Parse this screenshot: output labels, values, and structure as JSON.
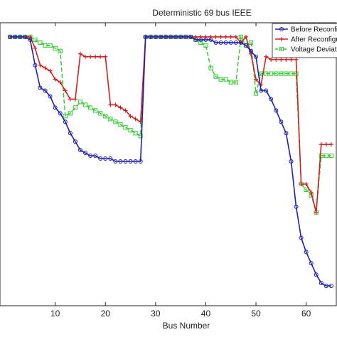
{
  "chart_data": {
    "type": "line",
    "title": "Deterministic 69 bus IEEE",
    "xlabel": "Bus Number",
    "ylabel": "",
    "xlim": [
      -1,
      66
    ],
    "ylim": [
      0.905,
      1.005
    ],
    "xticks": [
      10,
      20,
      30,
      40,
      50,
      60
    ],
    "grid": false,
    "legend_position": "top-right",
    "series": [
      {
        "name": "Before Reconfiguration",
        "color": "#1f1fb4",
        "marker": "circle",
        "dash": "solid",
        "x": [
          1,
          2,
          3,
          4,
          5,
          6,
          7,
          8,
          9,
          10,
          11,
          12,
          13,
          14,
          15,
          16,
          17,
          18,
          19,
          20,
          21,
          22,
          23,
          24,
          25,
          26,
          27,
          28,
          29,
          30,
          31,
          32,
          33,
          34,
          35,
          36,
          37,
          38,
          39,
          40,
          41,
          42,
          43,
          44,
          45,
          46,
          47,
          48,
          49,
          50,
          51,
          52,
          53,
          54,
          55,
          56,
          57,
          58,
          59,
          60,
          61,
          62,
          63,
          64,
          65
        ],
        "values": [
          1.0,
          1.0,
          1.0,
          1.0,
          0.999,
          0.99,
          0.982,
          0.981,
          0.979,
          0.975,
          0.973,
          0.97,
          0.966,
          0.963,
          0.96,
          0.959,
          0.958,
          0.958,
          0.957,
          0.957,
          0.957,
          0.956,
          0.956,
          0.956,
          0.956,
          0.956,
          0.956,
          1.0,
          1.0,
          1.0,
          1.0,
          1.0,
          1.0,
          1.0,
          1.0,
          1.0,
          1.0,
          0.999,
          0.999,
          0.999,
          0.999,
          0.998,
          0.998,
          0.998,
          0.998,
          0.998,
          0.998,
          0.997,
          0.995,
          0.993,
          0.981,
          0.981,
          0.978,
          0.974,
          0.97,
          0.966,
          0.956,
          0.94,
          0.929,
          0.924,
          0.92,
          0.916,
          0.913,
          0.912,
          0.912
        ]
      },
      {
        "name": "After Reconfiguration",
        "color": "#d42020",
        "marker": "plus",
        "dash": "solid",
        "x": [
          1,
          2,
          3,
          4,
          5,
          6,
          7,
          8,
          9,
          10,
          11,
          12,
          13,
          14,
          15,
          16,
          17,
          18,
          19,
          20,
          21,
          22,
          23,
          24,
          25,
          26,
          27,
          28,
          29,
          30,
          31,
          32,
          33,
          34,
          35,
          36,
          37,
          38,
          39,
          40,
          41,
          42,
          43,
          44,
          45,
          46,
          47,
          48,
          49,
          50,
          51,
          52,
          53,
          54,
          55,
          56,
          57,
          58,
          59,
          60,
          61,
          62,
          63,
          64,
          65
        ],
        "values": [
          1.0,
          1.0,
          1.0,
          1.0,
          1.0,
          0.996,
          0.99,
          0.989,
          0.988,
          0.985,
          0.984,
          0.981,
          0.978,
          0.978,
          0.994,
          0.993,
          0.993,
          0.993,
          0.993,
          0.993,
          0.976,
          0.976,
          0.975,
          0.974,
          0.972,
          0.971,
          0.97,
          1.0,
          1.0,
          1.0,
          1.0,
          1.0,
          1.0,
          1.0,
          1.0,
          1.0,
          1.0,
          1.0,
          1.0,
          1.0,
          1.0,
          1.0,
          1.0,
          1.0,
          1.0,
          1.0,
          0.998,
          1.0,
          0.994,
          0.985,
          0.983,
          0.993,
          0.992,
          0.992,
          0.992,
          0.992,
          0.992,
          0.992,
          0.948,
          0.948,
          0.945,
          0.938,
          0.962,
          0.962,
          0.962
        ]
      },
      {
        "name": "Voltage Deviation",
        "color": "#2fcc2f",
        "marker": "square",
        "dash": "dashed",
        "x": [
          1,
          2,
          3,
          4,
          5,
          6,
          7,
          8,
          9,
          10,
          11,
          12,
          13,
          14,
          15,
          16,
          17,
          18,
          19,
          20,
          21,
          22,
          23,
          24,
          25,
          26,
          27,
          28,
          29,
          30,
          31,
          32,
          33,
          34,
          35,
          36,
          37,
          38,
          39,
          40,
          41,
          42,
          43,
          44,
          45,
          46,
          47,
          48,
          49,
          50,
          51,
          52,
          53,
          54,
          55,
          56,
          57,
          58,
          59,
          60,
          61,
          62,
          63,
          64,
          65
        ],
        "values": [
          1.0,
          1.0,
          1.0,
          1.0,
          1.0,
          0.999,
          0.998,
          0.997,
          0.997,
          0.996,
          0.995,
          0.972,
          0.973,
          0.975,
          0.977,
          0.976,
          0.975,
          0.974,
          0.973,
          0.972,
          0.971,
          0.97,
          0.969,
          0.968,
          0.967,
          0.966,
          0.965,
          1.0,
          1.0,
          1.0,
          1.0,
          1.0,
          1.0,
          1.0,
          1.0,
          1.0,
          1.0,
          0.999,
          0.998,
          0.997,
          0.989,
          0.986,
          0.985,
          0.985,
          0.984,
          0.984,
          1.0,
          0.997,
          0.998,
          0.98,
          0.987,
          0.987,
          0.987,
          0.987,
          0.987,
          0.987,
          0.987,
          0.987,
          0.948,
          0.946,
          0.944,
          0.938,
          0.958,
          0.958,
          0.958
        ]
      }
    ]
  }
}
